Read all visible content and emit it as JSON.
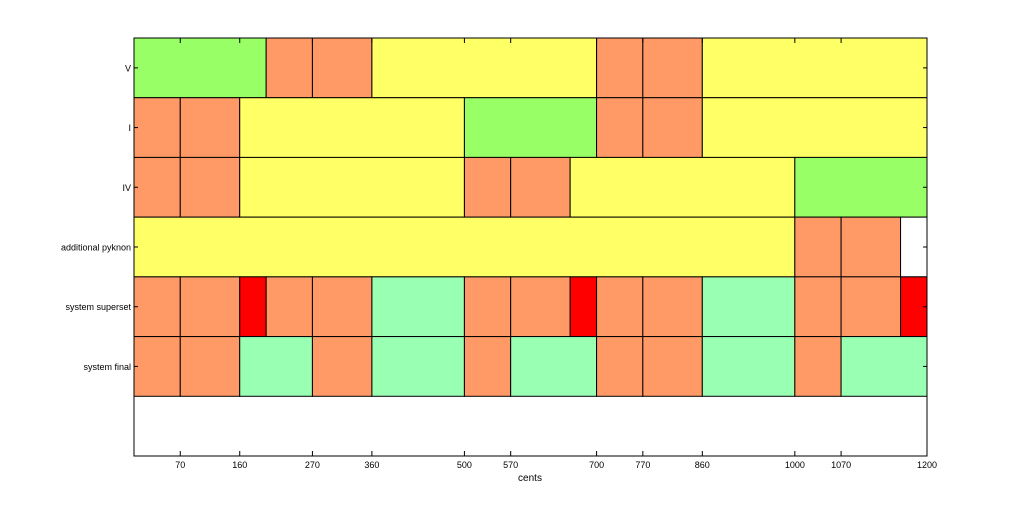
{
  "colors": {
    "background": "#ffffff",
    "segment_green": "#99ff66",
    "segment_orange": "#ff9966",
    "segment_yellow": "#ffff66",
    "segment_red": "#ff0000",
    "segment_mint": "#99ffb3",
    "segment_white": "#ffffff",
    "border": "#000000"
  },
  "chart_data": {
    "type": "bar",
    "orientation": "horizontal-stacked-segments",
    "title": "",
    "xlabel": "cents",
    "ylabel": "",
    "xlim": [
      0,
      1200
    ],
    "ylim": [
      -0.5,
      6.5
    ],
    "x_ticks": [
      70,
      160,
      270,
      360,
      500,
      570,
      700,
      770,
      860,
      1000,
      1070,
      1200
    ],
    "x_tick_labels": [
      "70",
      "160",
      "270",
      "360",
      "500",
      "570",
      "700",
      "770",
      "860",
      "1000",
      "1070",
      "1200"
    ],
    "categories": [
      "V",
      "I",
      "IV",
      "additional pyknon",
      "system superset",
      "system final"
    ],
    "series": [
      {
        "label": "V",
        "segments": [
          {
            "start": 0,
            "end": 200,
            "color": "green"
          },
          {
            "start": 200,
            "end": 270,
            "color": "orange"
          },
          {
            "start": 270,
            "end": 360,
            "color": "orange"
          },
          {
            "start": 360,
            "end": 700,
            "color": "yellow"
          },
          {
            "start": 700,
            "end": 770,
            "color": "orange"
          },
          {
            "start": 770,
            "end": 860,
            "color": "orange"
          },
          {
            "start": 860,
            "end": 1200,
            "color": "yellow"
          }
        ]
      },
      {
        "label": "I",
        "segments": [
          {
            "start": 0,
            "end": 70,
            "color": "orange"
          },
          {
            "start": 70,
            "end": 160,
            "color": "orange"
          },
          {
            "start": 160,
            "end": 500,
            "color": "yellow"
          },
          {
            "start": 500,
            "end": 700,
            "color": "green"
          },
          {
            "start": 700,
            "end": 770,
            "color": "orange"
          },
          {
            "start": 770,
            "end": 860,
            "color": "orange"
          },
          {
            "start": 860,
            "end": 1200,
            "color": "yellow"
          }
        ]
      },
      {
        "label": "IV",
        "segments": [
          {
            "start": 0,
            "end": 70,
            "color": "orange"
          },
          {
            "start": 70,
            "end": 160,
            "color": "orange"
          },
          {
            "start": 160,
            "end": 500,
            "color": "yellow"
          },
          {
            "start": 500,
            "end": 570,
            "color": "orange"
          },
          {
            "start": 570,
            "end": 660,
            "color": "orange"
          },
          {
            "start": 660,
            "end": 1000,
            "color": "yellow"
          },
          {
            "start": 1000,
            "end": 1200,
            "color": "green"
          }
        ]
      },
      {
        "label": "additional pyknon",
        "segments": [
          {
            "start": 0,
            "end": 1000,
            "color": "yellow"
          },
          {
            "start": 1000,
            "end": 1070,
            "color": "orange"
          },
          {
            "start": 1070,
            "end": 1160,
            "color": "orange"
          },
          {
            "start": 1160,
            "end": 1200,
            "color": "white"
          }
        ]
      },
      {
        "label": "system superset",
        "segments": [
          {
            "start": 0,
            "end": 70,
            "color": "orange"
          },
          {
            "start": 70,
            "end": 160,
            "color": "orange"
          },
          {
            "start": 160,
            "end": 200,
            "color": "red"
          },
          {
            "start": 200,
            "end": 270,
            "color": "orange"
          },
          {
            "start": 270,
            "end": 360,
            "color": "orange"
          },
          {
            "start": 360,
            "end": 500,
            "color": "mint"
          },
          {
            "start": 500,
            "end": 570,
            "color": "orange"
          },
          {
            "start": 570,
            "end": 660,
            "color": "orange"
          },
          {
            "start": 660,
            "end": 700,
            "color": "red"
          },
          {
            "start": 700,
            "end": 770,
            "color": "orange"
          },
          {
            "start": 770,
            "end": 860,
            "color": "orange"
          },
          {
            "start": 860,
            "end": 1000,
            "color": "mint"
          },
          {
            "start": 1000,
            "end": 1070,
            "color": "orange"
          },
          {
            "start": 1070,
            "end": 1160,
            "color": "orange"
          },
          {
            "start": 1160,
            "end": 1200,
            "color": "red"
          }
        ]
      },
      {
        "label": "system final",
        "segments": [
          {
            "start": 0,
            "end": 70,
            "color": "orange"
          },
          {
            "start": 70,
            "end": 160,
            "color": "orange"
          },
          {
            "start": 160,
            "end": 270,
            "color": "mint"
          },
          {
            "start": 270,
            "end": 360,
            "color": "orange"
          },
          {
            "start": 360,
            "end": 500,
            "color": "mint"
          },
          {
            "start": 500,
            "end": 570,
            "color": "orange"
          },
          {
            "start": 570,
            "end": 700,
            "color": "mint"
          },
          {
            "start": 700,
            "end": 770,
            "color": "orange"
          },
          {
            "start": 770,
            "end": 860,
            "color": "orange"
          },
          {
            "start": 860,
            "end": 1000,
            "color": "mint"
          },
          {
            "start": 1000,
            "end": 1070,
            "color": "orange"
          },
          {
            "start": 1070,
            "end": 1200,
            "color": "mint"
          }
        ]
      }
    ],
    "grid": false,
    "legend": "none"
  }
}
